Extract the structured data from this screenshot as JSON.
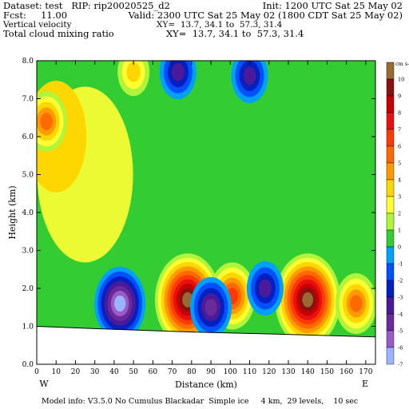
{
  "header": {
    "line1_left": "Dataset: test   RIP: rip20020525_d2",
    "line1_right": "Init: 1200 UTC Sat 25 May 02",
    "line2_left": "Fcst:     11.00",
    "line2_right": "Valid: 2300 UTC Sat 25 May 02 (1800 CDT Sat 25 May 02)",
    "line3_left": "Vertical velocity",
    "line3_right": "XY=  13.7, 34.1 to  57.3, 31.4",
    "line4_left": "Total cloud mixing ratio",
    "line4_right": "XY=  13.7, 34.1 to  57.3, 31.4"
  },
  "footer": {
    "model_info": "Model info: V3.5.0 No Cumulus Blackadar  Simple ice     4 km,  29 levels,    10 sec"
  },
  "chart_data": {
    "type": "heatmap",
    "title": "Vertical velocity",
    "subtitle": "Total cloud mixing ratio",
    "xlabel": "Distance (km)",
    "ylabel": "Height (km)",
    "xlim": [
      0,
      175
    ],
    "ylim": [
      0,
      8
    ],
    "x_ticks": [
      "0",
      "10",
      "20",
      "30",
      "40",
      "50",
      "60",
      "70",
      "80",
      "90",
      "100",
      "110",
      "120",
      "130",
      "140",
      "150",
      "160",
      "170"
    ],
    "y_ticks": [
      "0.0",
      "1.0",
      "2.0",
      "3.0",
      "4.0",
      "5.0",
      "6.0",
      "7.0",
      "8.0"
    ],
    "x_end_labels": {
      "left": "W",
      "right": "E"
    },
    "colorbar": {
      "units": "cm s-1",
      "levels": [
        "10",
        "9",
        "8",
        "7",
        "6",
        "5",
        "4",
        "3",
        "2",
        "1",
        "0",
        "-1",
        "-2",
        "-3",
        "-4",
        "-5",
        "-6",
        "-7"
      ],
      "colors": [
        "#9b6a33",
        "#8b1010",
        "#c80000",
        "#e81010",
        "#ff3a00",
        "#ff6a00",
        "#ff9a00",
        "#ffd700",
        "#ffff33",
        "#b0f53a",
        "#33cc33",
        "#00a0ff",
        "#0050ff",
        "#0020c0",
        "#4a1a9a",
        "#6a2a9a",
        "#9a5ac8",
        "#9ab4ff"
      ]
    },
    "terrain": {
      "x": [
        0,
        40,
        80,
        120,
        175
      ],
      "z": [
        1.0,
        0.92,
        0.85,
        0.8,
        0.72
      ]
    },
    "features": [
      {
        "label": "updraft",
        "x": 78,
        "z": 1.7,
        "w": 10
      },
      {
        "label": "updraft",
        "x": 140,
        "z": 1.7,
        "w": 10
      },
      {
        "label": "updraft",
        "x": 101,
        "z": 1.8,
        "w": 6
      },
      {
        "label": "updraft",
        "x": 165,
        "z": 1.6,
        "w": 5
      },
      {
        "label": "downdraft",
        "x": 43,
        "z": 1.6,
        "w": -7
      },
      {
        "label": "downdraft",
        "x": 90,
        "z": 1.5,
        "w": -5
      },
      {
        "label": "downdraft",
        "x": 118,
        "z": 2.0,
        "w": -4
      },
      {
        "label": "anvil-updraft",
        "x": 5,
        "z": 6.4,
        "w": 5
      },
      {
        "label": "upper-downdraft",
        "x": 110,
        "z": 7.6,
        "w": -4
      },
      {
        "label": "upper-downdraft",
        "x": 73,
        "z": 7.7,
        "w": -4
      },
      {
        "label": "upper-updraft",
        "x": 50,
        "z": 7.7,
        "w": 3
      }
    ]
  }
}
